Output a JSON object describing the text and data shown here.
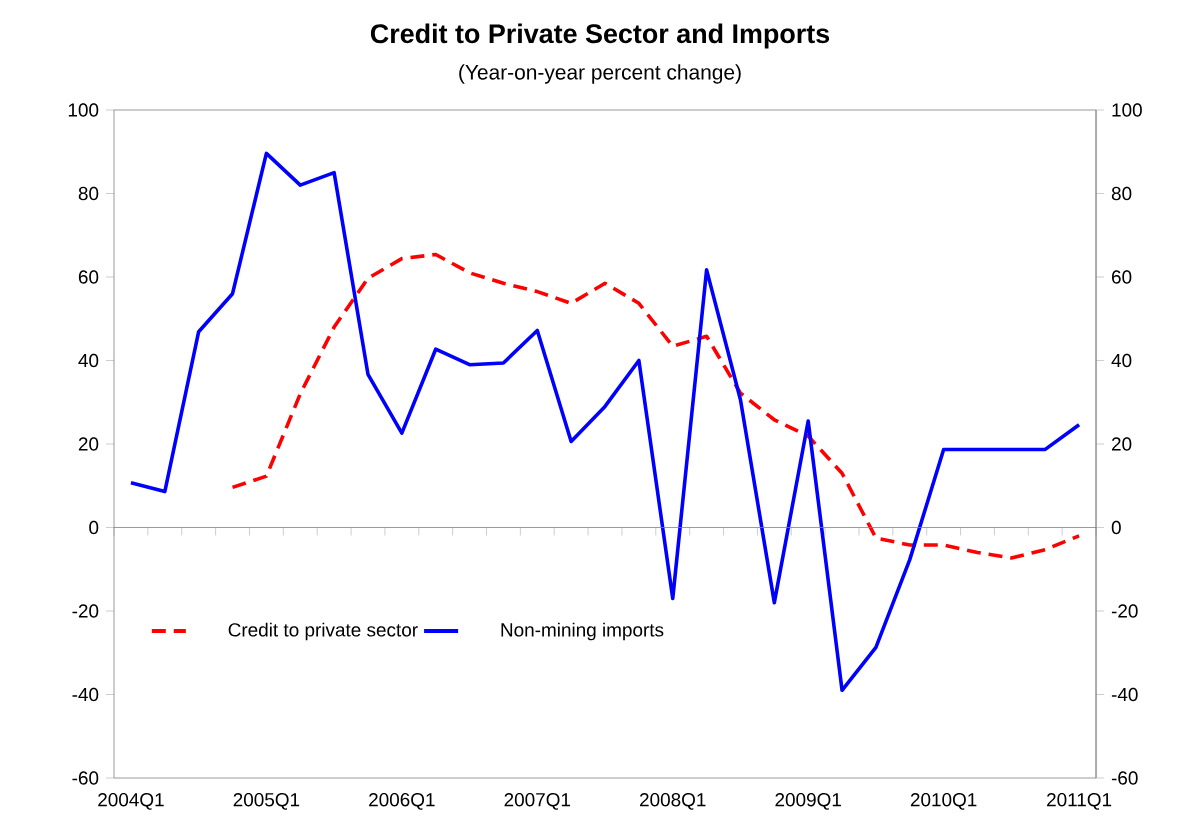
{
  "chart_data": {
    "type": "line",
    "title": "Credit to Private Sector and Imports",
    "subtitle": "(Year-on-year percent change)",
    "categories": [
      "2004Q1",
      null,
      null,
      null,
      "2005Q1",
      null,
      null,
      null,
      "2006Q1",
      null,
      null,
      null,
      "2007Q1",
      null,
      null,
      null,
      "2008Q1",
      null,
      null,
      null,
      "2009Q1",
      null,
      null,
      null,
      "2010Q1",
      null,
      null,
      null,
      "2011Q1"
    ],
    "series": [
      {
        "name": "Credit to private sector",
        "color": "#ff0000",
        "line_style": "dashed",
        "values": [
          null,
          null,
          null,
          9.6,
          12.3,
          32,
          48,
          59.7,
          64.4,
          65.4,
          61,
          58.5,
          56.5,
          53.7,
          58.5,
          53.7,
          43.4,
          45.8,
          32.2,
          25.8,
          21.9,
          13,
          -2.5,
          -4.2,
          -4.2,
          -6,
          -7.3,
          -5.3,
          -2
        ]
      },
      {
        "name": "Non-mining imports",
        "color": "#0000ff",
        "line_style": "solid",
        "values": [
          10.7,
          8.6,
          46.9,
          56,
          89.6,
          82,
          85,
          36.7,
          22.6,
          42.7,
          39,
          39.4,
          47.2,
          20.6,
          29,
          40,
          -17,
          61.7,
          30.6,
          -18,
          25.5,
          -39,
          -28.7,
          -7.7,
          18.7,
          18.7,
          18.7,
          18.7,
          24.6
        ]
      }
    ],
    "ylim": [
      -60,
      100
    ],
    "yticks": [
      -60,
      -40,
      -20,
      0,
      20,
      40,
      60,
      80,
      100
    ],
    "y2lim": [
      -60,
      100
    ],
    "y2ticks": [
      -60,
      -40,
      -20,
      0,
      20,
      40,
      60,
      80,
      100
    ],
    "legend": "bottom left",
    "marker": "none"
  }
}
